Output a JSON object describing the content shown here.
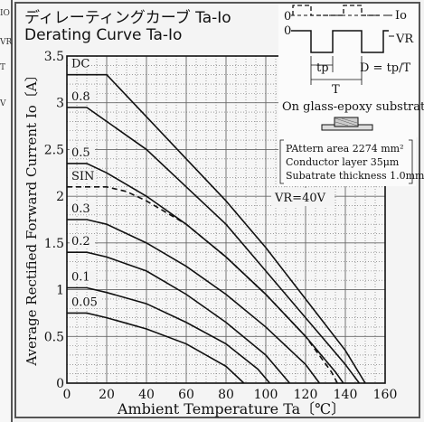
{
  "page": {
    "left_strip_fragments": [
      "IO",
      "VR",
      "T",
      "V"
    ]
  },
  "header": {
    "title_jp": "ディレーティングカーブ Ta-Io",
    "title_en": "Derating Curve Ta-Io"
  },
  "inset": {
    "io_label": "Io",
    "vr_label": "VR",
    "zero_top": "0",
    "zero_bottom": "0",
    "tp_label": "tp",
    "t_label": "T",
    "duty_formula": "D = tp/T",
    "substrate_label": "On glass-epoxy substrate",
    "spec_lines": [
      "PAttern area 2274 mm²",
      "Conductor layer 35μm",
      "Subatrate thickness 1.0mm"
    ],
    "vr_condition": "VR=40V"
  },
  "colors": {
    "curve": "#111111",
    "grid": "#666666",
    "background": "#f4f4f4"
  },
  "chart_data": {
    "type": "line",
    "xlabel": "Ambient Temperature  Ta〔℃〕",
    "ylabel": "Average Rectified Forward Current  Io〔A〕",
    "xlim": [
      0,
      160
    ],
    "ylim": [
      0,
      3.5
    ],
    "xticks": [
      "0",
      "20",
      "40",
      "60",
      "80",
      "100",
      "120",
      "140",
      "160"
    ],
    "yticks": [
      "0",
      "0.5",
      "1",
      "1.5",
      "2",
      "2.5",
      "3",
      "3.5"
    ],
    "grid": true,
    "series": [
      {
        "name": "DC",
        "dashed": false,
        "x": [
          0,
          20,
          40,
          60,
          80,
          100,
          120,
          140,
          150
        ],
        "y": [
          3.3,
          3.3,
          2.85,
          2.4,
          1.95,
          1.45,
          0.9,
          0.35,
          0
        ]
      },
      {
        "name": "0.8",
        "dashed": false,
        "x": [
          0,
          10,
          20,
          40,
          60,
          80,
          100,
          120,
          140,
          147
        ],
        "y": [
          2.95,
          2.95,
          2.8,
          2.5,
          2.1,
          1.7,
          1.2,
          0.7,
          0.2,
          0
        ]
      },
      {
        "name": "0.5",
        "dashed": false,
        "x": [
          0,
          10,
          20,
          40,
          60,
          80,
          100,
          120,
          135,
          139
        ],
        "y": [
          2.35,
          2.35,
          2.25,
          2.0,
          1.7,
          1.35,
          0.95,
          0.5,
          0.12,
          0
        ]
      },
      {
        "name": "SIN",
        "dashed": true,
        "x": [
          0,
          20,
          30,
          40,
          60,
          80,
          100,
          120,
          133,
          136
        ],
        "y": [
          2.1,
          2.1,
          2.05,
          1.95,
          1.7,
          1.35,
          0.95,
          0.5,
          0.12,
          0
        ]
      },
      {
        "name": "0.3",
        "dashed": false,
        "x": [
          0,
          10,
          20,
          40,
          60,
          80,
          100,
          120,
          127
        ],
        "y": [
          1.75,
          1.75,
          1.7,
          1.5,
          1.25,
          0.95,
          0.6,
          0.2,
          0
        ]
      },
      {
        "name": "0.2",
        "dashed": false,
        "x": [
          0,
          10,
          20,
          40,
          60,
          80,
          100,
          112
        ],
        "y": [
          1.4,
          1.4,
          1.35,
          1.2,
          0.95,
          0.65,
          0.3,
          0
        ]
      },
      {
        "name": "0.1",
        "dashed": false,
        "x": [
          0,
          10,
          20,
          40,
          60,
          80,
          96,
          102
        ],
        "y": [
          1.02,
          1.02,
          0.97,
          0.85,
          0.65,
          0.42,
          0.15,
          0
        ]
      },
      {
        "name": "0.05",
        "dashed": false,
        "x": [
          0,
          10,
          20,
          40,
          60,
          80,
          89
        ],
        "y": [
          0.75,
          0.75,
          0.7,
          0.58,
          0.42,
          0.18,
          0
        ]
      }
    ]
  }
}
